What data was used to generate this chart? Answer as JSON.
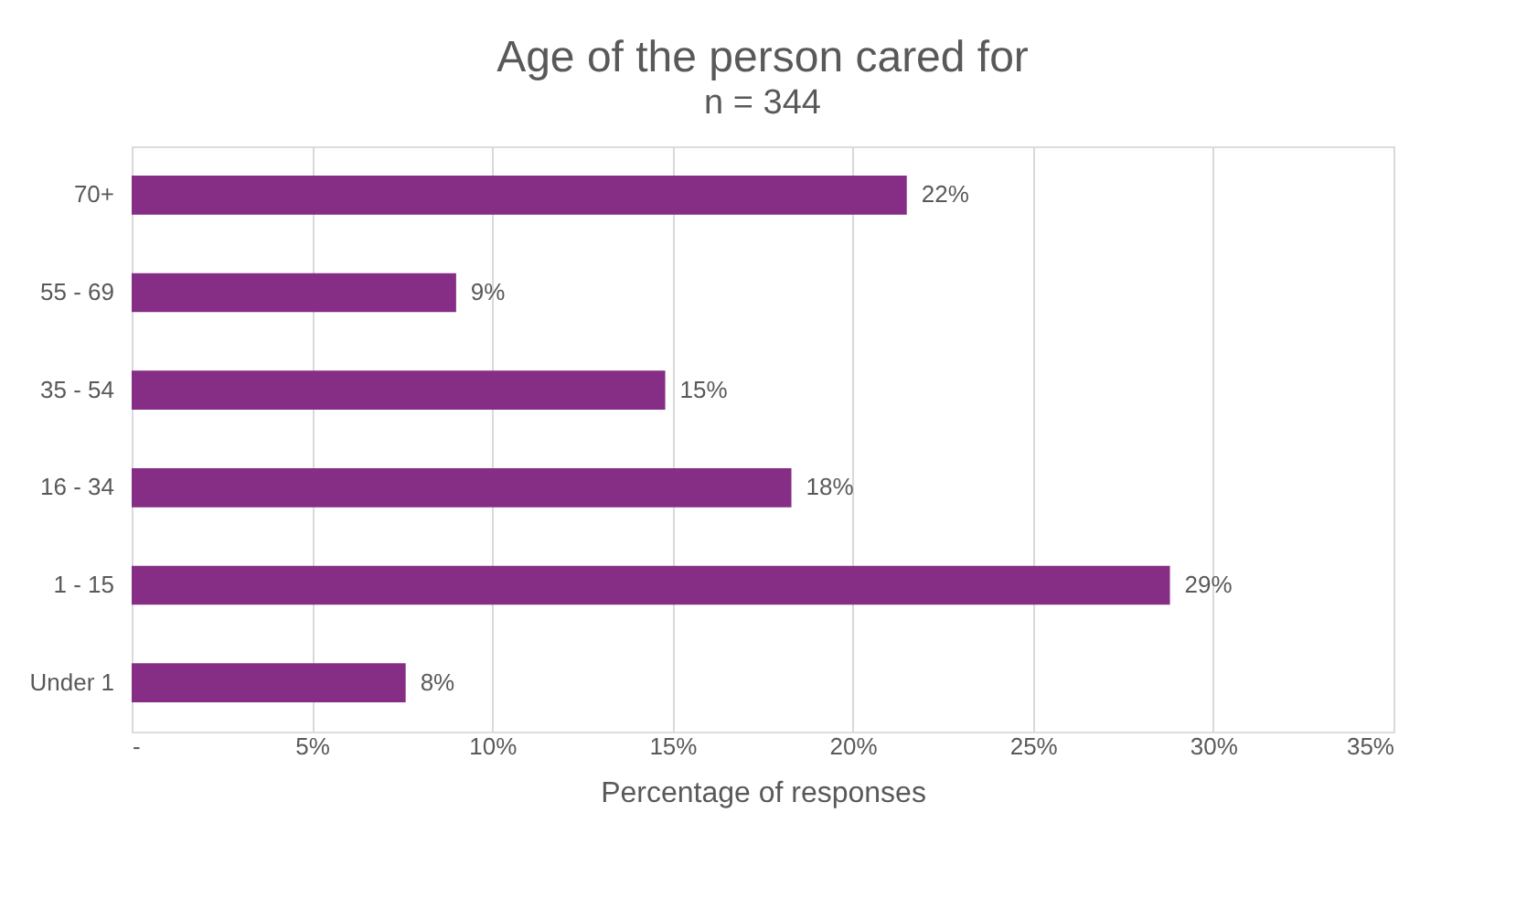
{
  "chart_data": {
    "type": "bar",
    "orientation": "horizontal",
    "title": "Age of the person cared for",
    "subtitle": "n = 344",
    "xlabel": "Percentage of responses",
    "categories": [
      "70+",
      "55 - 69",
      "35 - 54",
      "16 - 34",
      "1 - 15",
      "Under 1"
    ],
    "series": [
      {
        "color": "#862d86",
        "values": [
          21.5,
          9.0,
          14.8,
          18.3,
          28.8,
          7.6
        ],
        "value_labels": [
          "22%",
          "9%",
          "15%",
          "18%",
          "29%",
          "8%"
        ]
      }
    ],
    "xlim": [
      0,
      35
    ],
    "xticks": [
      {
        "value": 0,
        "label": "-"
      },
      {
        "value": 5,
        "label": "5%"
      },
      {
        "value": 10,
        "label": "10%"
      },
      {
        "value": 15,
        "label": "15%"
      },
      {
        "value": 20,
        "label": "20%"
      },
      {
        "value": 25,
        "label": "25%"
      },
      {
        "value": 30,
        "label": "30%"
      },
      {
        "value": 35,
        "label": "35%"
      }
    ],
    "grid": "x",
    "legend": false
  }
}
